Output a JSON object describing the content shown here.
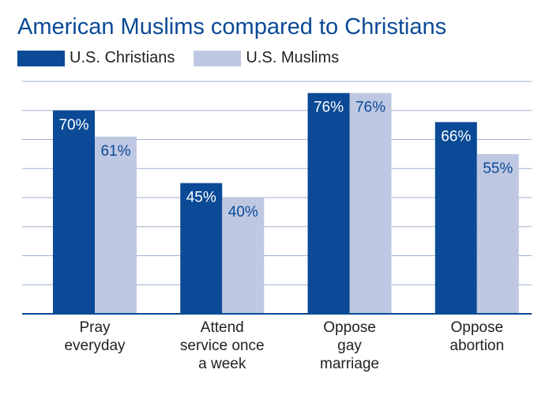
{
  "chart_data": {
    "type": "bar",
    "title": "American Muslims compared to Christians",
    "categories": [
      [
        "Pray",
        "everyday"
      ],
      [
        "Attend",
        "service once",
        "a week"
      ],
      [
        "Oppose",
        "gay",
        "marriage"
      ],
      [
        "Oppose",
        "abortion"
      ]
    ],
    "series": [
      {
        "name": "U.S. Christians",
        "values": [
          70,
          45,
          76,
          66
        ],
        "labels": [
          "70%",
          "45%",
          "76%",
          "66%"
        ],
        "color": "#0a4a96",
        "label_color": "#ffffff"
      },
      {
        "name": "U.S. Muslims",
        "values": [
          61,
          40,
          76,
          55
        ],
        "labels": [
          "61%",
          "40%",
          "76%",
          "55%"
        ],
        "color": "#bfc8e2",
        "label_color": "#0a4a96"
      }
    ],
    "ylim": [
      0,
      80
    ],
    "grid": true,
    "legend": "top-left"
  }
}
